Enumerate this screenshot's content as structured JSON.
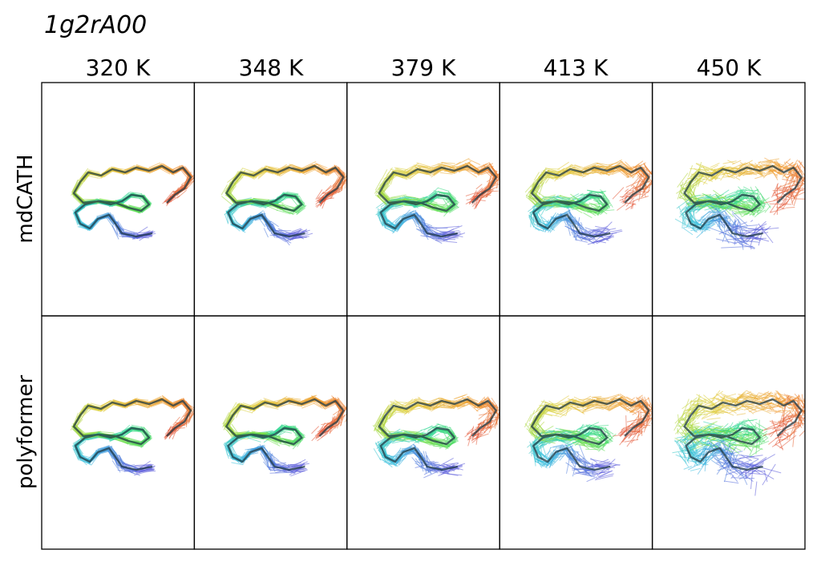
{
  "figure": {
    "title": "1g2rA00",
    "columns": [
      "320 K",
      "348 K",
      "379 K",
      "413 K",
      "450 K"
    ],
    "rows": [
      "mdCATH",
      "polyformer"
    ],
    "spread": [
      0.55,
      0.75,
      0.95,
      1.25,
      2.1
    ]
  },
  "colors": {
    "gradient": [
      "#5b5bdb",
      "#3cc0e0",
      "#30d89a",
      "#6fe040",
      "#e0d040",
      "#f09a30",
      "#e04a3a"
    ],
    "reference": "#1f3a44",
    "border": "#000000"
  }
}
